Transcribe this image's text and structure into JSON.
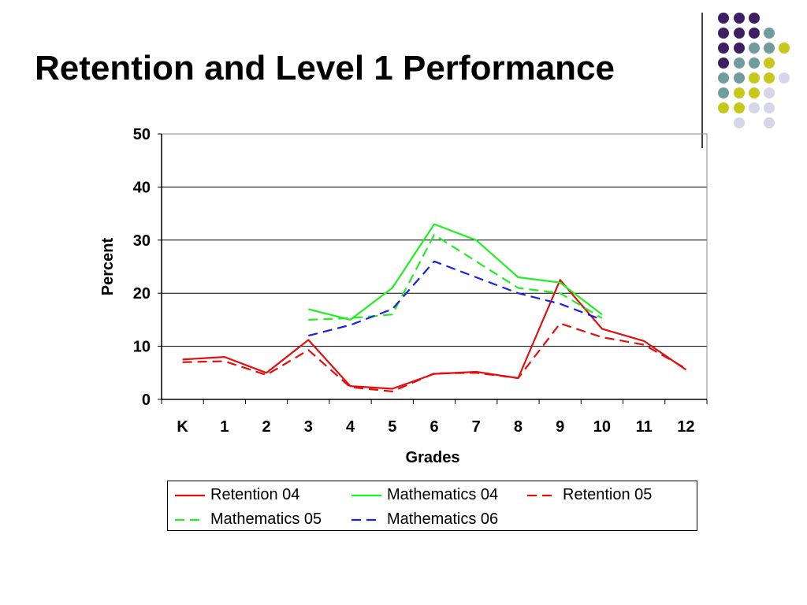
{
  "slide": {
    "title": "Retention and Level 1 Performance"
  },
  "decor": {
    "dot_colors": {
      "purple": "#3e1f63",
      "teal": "#6f9c9c",
      "olive": "#c8c81a",
      "lavender": "#d6d6e8"
    },
    "divider_color": "#444444"
  },
  "chart_data": {
    "type": "line",
    "title": "",
    "xlabel": "Grades",
    "ylabel": "Percent",
    "categories": [
      "K",
      "1",
      "2",
      "3",
      "4",
      "5",
      "6",
      "7",
      "8",
      "9",
      "10",
      "11",
      "12"
    ],
    "ylim": [
      0,
      50
    ],
    "yticks": [
      0,
      10,
      20,
      30,
      40,
      50
    ],
    "grid": "horizontal",
    "legend_position": "bottom",
    "series": [
      {
        "name": "Retention 04",
        "color": "#e01010",
        "dash": "solid",
        "values": [
          7.5,
          8,
          5,
          11.2,
          2.5,
          2,
          4.8,
          5.2,
          4,
          22.5,
          13.3,
          11,
          5.6
        ]
      },
      {
        "name": "Mathematics 04",
        "color": "#22ee22",
        "dash": "solid",
        "values": [
          null,
          null,
          null,
          17,
          15,
          21,
          33,
          30,
          23,
          22,
          16,
          null,
          null
        ]
      },
      {
        "name": "Retention 05",
        "color": "#e01010",
        "dash": "dashed",
        "values": [
          7,
          7.2,
          4.6,
          9.3,
          2.3,
          1.5,
          4.9,
          5,
          4,
          14.3,
          11.7,
          10.3,
          5.8
        ]
      },
      {
        "name": "Mathematics 05",
        "color": "#22ee22",
        "dash": "dashed",
        "values": [
          null,
          null,
          null,
          15,
          15.3,
          16,
          31,
          26,
          21,
          20,
          15.3,
          null,
          null
        ]
      },
      {
        "name": "Mathematics 06",
        "color": "#1a22dd",
        "dash": "dashed",
        "values": [
          null,
          null,
          null,
          12,
          14,
          17,
          26,
          23,
          20,
          18,
          15,
          null,
          null
        ]
      }
    ]
  }
}
